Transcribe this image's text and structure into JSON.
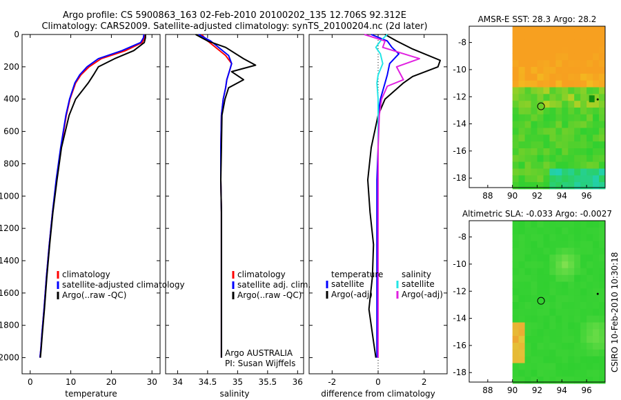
{
  "title_line1": "Argo profile: CS 5900863_163 02-Feb-2010 20100202_135 12.706S 92.312E",
  "title_line2": "Climatology: CARS2009. Satellite-adjusted climatology: synTS_20100204.nc (2d later)",
  "side_stamp": "CSIRO 10-Feb-2010 10:30:18",
  "colors": {
    "red": "#ff0000",
    "blue": "#0000ff",
    "black": "#000000",
    "cyan": "#22e5e5",
    "magenta": "#e020e0"
  },
  "chart_data": [
    {
      "id": "temperature",
      "type": "line",
      "xlabel": "temperature",
      "ylabel": "",
      "xlim": [
        -2,
        32
      ],
      "ylim": [
        2100,
        0
      ],
      "xticks": [
        0,
        10,
        20,
        30
      ],
      "yticks": [
        0,
        200,
        400,
        600,
        800,
        1000,
        1200,
        1400,
        1600,
        1800,
        2000
      ],
      "legend": [
        "climatology",
        "satellite-adjusted climatology",
        "Argo(..raw -QC)"
      ],
      "series": [
        {
          "name": "climatology",
          "color": "red",
          "x": [
            28.3,
            28.2,
            27.6,
            23.5,
            17.5,
            14.5,
            12.5,
            11.2,
            9.8,
            8.9,
            7.6,
            6.5,
            5.5,
            4.7,
            4.0,
            3.4,
            2.9,
            2.6,
            2.4
          ],
          "y": [
            0,
            20,
            50,
            100,
            150,
            200,
            250,
            300,
            400,
            500,
            700,
            900,
            1100,
            1300,
            1500,
            1700,
            1850,
            1950,
            2000
          ]
        },
        {
          "name": "satellite-adjusted climatology",
          "color": "blue",
          "x": [
            28.0,
            27.9,
            27.2,
            22.6,
            16.8,
            14.0,
            12.2,
            11.0,
            9.7,
            8.8,
            7.5,
            6.4,
            5.5,
            4.7,
            4.0,
            3.4,
            2.9,
            2.6,
            2.4
          ],
          "y": [
            0,
            20,
            50,
            100,
            150,
            200,
            250,
            300,
            400,
            500,
            700,
            900,
            1100,
            1300,
            1500,
            1700,
            1850,
            1950,
            2000
          ]
        },
        {
          "name": "Argo(..raw -QC)",
          "color": "black",
          "x": [
            28.4,
            28.4,
            28.1,
            25.5,
            20.8,
            16.8,
            15.6,
            14.3,
            11.2,
            9.6,
            7.7,
            6.6,
            5.6,
            4.8,
            4.1,
            3.5,
            3.0,
            2.7,
            2.5
          ],
          "y": [
            0,
            20,
            50,
            100,
            150,
            200,
            250,
            300,
            400,
            500,
            700,
            900,
            1100,
            1300,
            1500,
            1700,
            1850,
            1950,
            2000
          ]
        }
      ]
    },
    {
      "id": "salinity",
      "type": "line",
      "xlabel": "salinity",
      "ylabel": "",
      "xlim": [
        33.8,
        36.1
      ],
      "ylim": [
        2100,
        0
      ],
      "xticks": [
        34,
        34.5,
        35,
        35.5,
        36
      ],
      "legend": [
        "climatology",
        "satellite adj. clim.",
        "Argo(..raw -QC)"
      ],
      "annotations": [
        "Argo AUSTRALIA",
        "PI: Susan Wijffels"
      ],
      "series": [
        {
          "name": "climatology",
          "color": "red",
          "x": [
            34.4,
            34.5,
            34.6,
            34.8,
            34.9,
            34.87,
            34.82,
            34.8,
            34.76,
            34.73,
            34.72,
            34.72,
            34.73,
            34.73,
            34.73,
            34.73,
            34.73,
            34.73,
            34.73
          ],
          "y": [
            0,
            40,
            70,
            130,
            180,
            220,
            280,
            330,
            400,
            500,
            700,
            900,
            1100,
            1300,
            1500,
            1700,
            1850,
            1950,
            2000
          ]
        },
        {
          "name": "satellite adj. clim.",
          "color": "blue",
          "x": [
            34.35,
            34.55,
            34.65,
            34.85,
            34.9,
            34.87,
            34.82,
            34.8,
            34.76,
            34.73,
            34.72,
            34.72,
            34.73,
            34.73,
            34.73,
            34.73,
            34.73,
            34.73,
            34.73
          ],
          "y": [
            0,
            40,
            70,
            130,
            180,
            220,
            280,
            330,
            400,
            500,
            700,
            900,
            1100,
            1300,
            1500,
            1700,
            1850,
            1950,
            2000
          ]
        },
        {
          "name": "Argo(..raw -QC)",
          "color": "black",
          "x": [
            34.3,
            34.5,
            34.8,
            35.1,
            35.3,
            34.9,
            35.1,
            34.85,
            34.79,
            34.74,
            34.73,
            34.72,
            34.73,
            34.73,
            34.73,
            34.73,
            34.73,
            34.73,
            34.73
          ],
          "y": [
            0,
            40,
            80,
            150,
            190,
            230,
            280,
            330,
            400,
            500,
            700,
            900,
            1100,
            1300,
            1500,
            1700,
            1850,
            1950,
            2000
          ]
        }
      ]
    },
    {
      "id": "difference",
      "type": "line",
      "xlabel": "difference from climatology",
      "ylabel": "",
      "xlim": [
        -3,
        3
      ],
      "ylim": [
        2100,
        0
      ],
      "xticks": [
        -2,
        0,
        2
      ],
      "legend_titles": [
        "temperature",
        "salinity"
      ],
      "legend": [
        "satellite",
        "Argo(-adj)",
        "satellite",
        "Argo(-adj)"
      ],
      "series": [
        {
          "name": "temperature satellite",
          "color": "blue",
          "x": [
            -0.3,
            0.4,
            0.6,
            0.9,
            0.5,
            0.4,
            0.3,
            0.1,
            0.0,
            0.0,
            -0.05,
            -0.05,
            -0.05,
            -0.05,
            -0.05,
            -0.05,
            -0.05
          ],
          "y": [
            0,
            40,
            80,
            120,
            180,
            250,
            300,
            400,
            500,
            700,
            900,
            1100,
            1300,
            1500,
            1700,
            1900,
            2000
          ]
        },
        {
          "name": "temperature Argo(-adj)",
          "color": "black",
          "x": [
            0.3,
            0.8,
            1.5,
            2.7,
            2.6,
            1.5,
            1.1,
            0.3,
            0.0,
            -0.3,
            -0.45,
            -0.35,
            -0.2,
            -0.25,
            -0.4,
            -0.2,
            -0.1
          ],
          "y": [
            0,
            40,
            90,
            160,
            200,
            260,
            300,
            400,
            500,
            700,
            900,
            1100,
            1300,
            1500,
            1700,
            1900,
            2000
          ]
        },
        {
          "name": "salinity satellite",
          "color": "cyan",
          "x": [
            0.4,
            0.1,
            -0.1,
            0.1,
            0.2,
            0.0,
            -0.05,
            0.0,
            0.0,
            0.0,
            0.0,
            0.0,
            0.0,
            0.0,
            0.0,
            0.0,
            0.0
          ],
          "y": [
            0,
            40,
            80,
            120,
            180,
            250,
            300,
            400,
            500,
            700,
            900,
            1100,
            1300,
            1500,
            1700,
            1900,
            2000
          ]
        },
        {
          "name": "salinity Argo(-adj)",
          "color": "magenta",
          "x": [
            -0.6,
            0.3,
            0.2,
            1.8,
            0.8,
            1.1,
            0.4,
            0.15,
            0.05,
            0.0,
            0.0,
            0.0,
            0.0,
            0.0,
            0.0,
            0.0,
            0.0
          ],
          "y": [
            0,
            40,
            80,
            150,
            200,
            280,
            320,
            400,
            500,
            700,
            900,
            1100,
            1300,
            1500,
            1700,
            1900,
            2000
          ]
        }
      ]
    },
    {
      "id": "sst_map",
      "type": "heatmap",
      "title": "AMSR-E SST: 28.3 Argo: 28.2",
      "xlim": [
        86.5,
        97.5
      ],
      "ylim": [
        -18.7,
        -6.8
      ],
      "xticks": [
        88,
        90,
        92,
        94,
        96
      ],
      "yticks": [
        -8,
        -10,
        -12,
        -14,
        -16,
        -18
      ],
      "data_lon_range": [
        90,
        97.5
      ],
      "float_position": {
        "lon": 92.312,
        "lat": -12.706
      },
      "colors": {
        "warm": "#f7a020",
        "yellow": "#f0d020",
        "green": "#30d030",
        "cyan": "#20d0c0",
        "land": "#109010"
      }
    },
    {
      "id": "sla_map",
      "type": "heatmap",
      "title": "Altimetric SLA: -0.033 Argo: -0.0027",
      "xlim": [
        86.5,
        97.5
      ],
      "ylim": [
        -18.7,
        -6.8
      ],
      "xticks": [
        88,
        90,
        92,
        94,
        96
      ],
      "yticks": [
        -8,
        -10,
        -12,
        -14,
        -16,
        -18
      ],
      "data_lon_range": [
        90,
        97.5
      ],
      "float_position": {
        "lon": 92.312,
        "lat": -12.706
      },
      "colors": {
        "green": "#30d030",
        "lightgreen": "#80e050",
        "yellow": "#d8e040",
        "orange": "#f0a030"
      }
    }
  ]
}
